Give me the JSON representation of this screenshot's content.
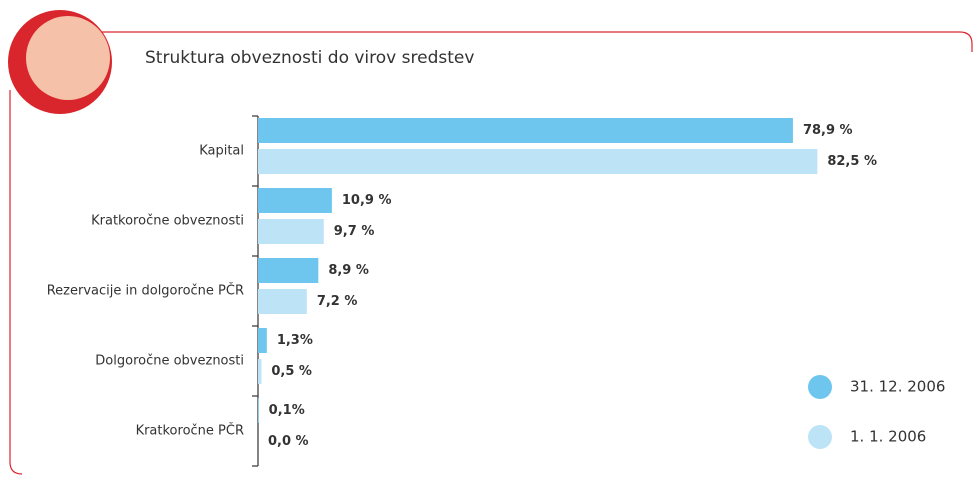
{
  "chart_data": {
    "type": "bar",
    "orientation": "horizontal",
    "title": "Struktura obveznosti do virov sredstev",
    "categories": [
      "Kapital",
      "Kratkoročne obveznosti",
      "Rezervacije in dolgoročne PČR",
      "Dolgoročne obveznosti",
      "Kratkoročne PČR"
    ],
    "xlim": [
      0,
      100
    ],
    "series": [
      {
        "name": "31. 12. 2006",
        "color": "#6ec6ee",
        "values": [
          78.9,
          10.9,
          8.9,
          1.3,
          0.1
        ],
        "value_labels": [
          "78,9 %",
          "10,9 %",
          "8,9 %",
          "1,3%",
          "0,1%"
        ]
      },
      {
        "name": "1. 1. 2006",
        "color": "#bde3f7",
        "values": [
          82.5,
          9.7,
          7.2,
          0.5,
          0.0
        ],
        "value_labels": [
          "82,5 %",
          "9,7 %",
          "7,2 %",
          "0,5 %",
          "0,0 %"
        ]
      }
    ],
    "legend": "bottom-right"
  }
}
